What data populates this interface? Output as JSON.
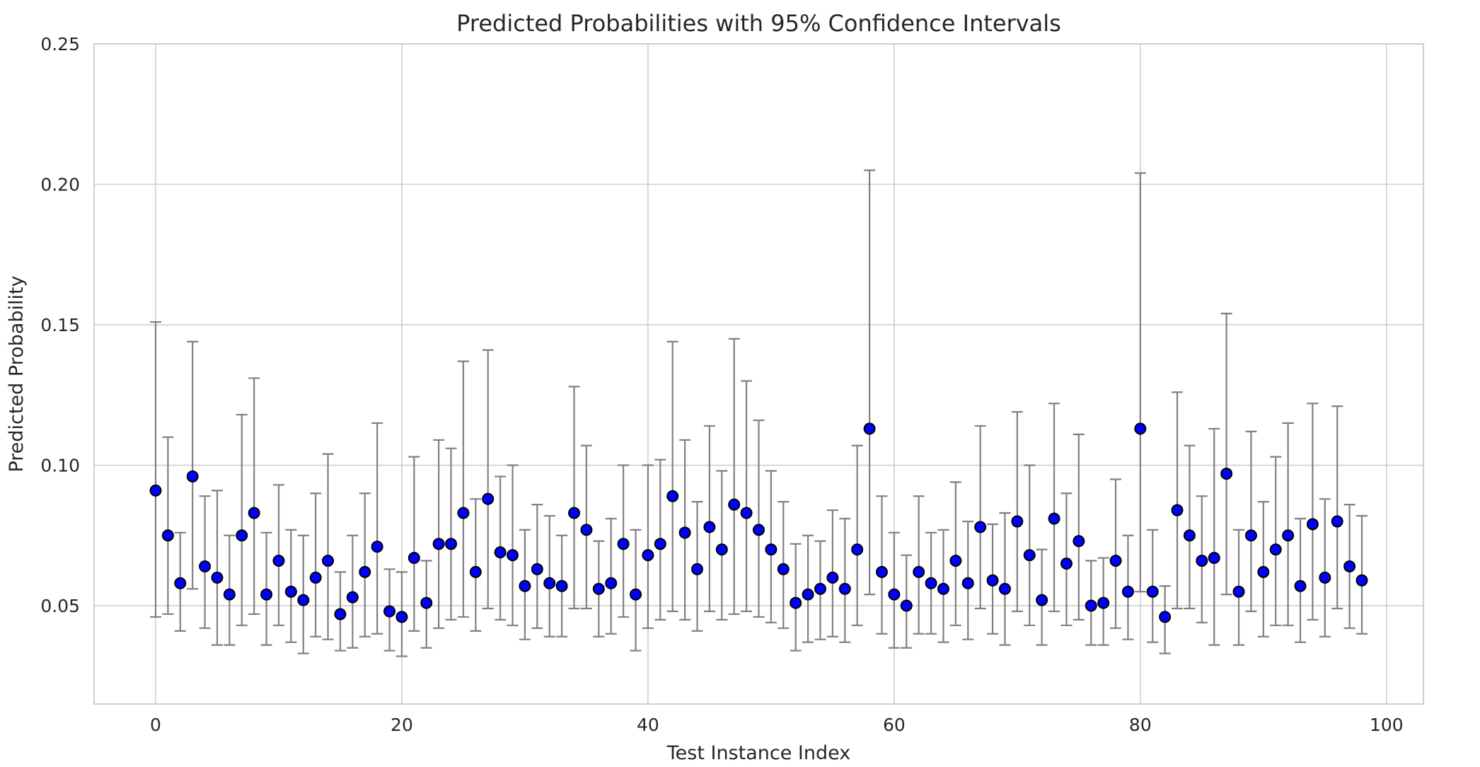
{
  "chart_data": {
    "type": "scatter",
    "title": "Predicted Probabilities with 95% Confidence Intervals",
    "xlabel": "Test Instance Index",
    "ylabel": "Predicted Probability",
    "xlim": [
      -5,
      103
    ],
    "ylim": [
      0.015,
      0.25
    ],
    "x_ticks": [
      0,
      20,
      40,
      60,
      80,
      100
    ],
    "x_tick_labels": [
      "0",
      "20",
      "40",
      "60",
      "80",
      "100"
    ],
    "y_ticks": [
      0.05,
      0.1,
      0.15,
      0.2,
      0.25
    ],
    "y_tick_labels": [
      "0.05",
      "0.10",
      "0.15",
      "0.20",
      "0.25"
    ],
    "grid": true,
    "marker_color": "#0000ff",
    "marker_edge_color": "#000000",
    "errorbar_color": "#808080",
    "x": [
      0,
      1,
      2,
      3,
      4,
      5,
      6,
      7,
      8,
      9,
      10,
      11,
      12,
      13,
      14,
      15,
      16,
      17,
      18,
      19,
      20,
      21,
      22,
      23,
      24,
      25,
      26,
      27,
      28,
      29,
      30,
      31,
      32,
      33,
      34,
      35,
      36,
      37,
      38,
      39,
      40,
      41,
      42,
      43,
      44,
      45,
      46,
      47,
      48,
      49,
      50,
      51,
      52,
      53,
      54,
      55,
      56,
      57,
      58,
      59,
      60,
      61,
      62,
      63,
      64,
      65,
      66,
      67,
      68,
      69,
      70,
      71,
      72,
      73,
      74,
      75,
      76,
      77,
      78,
      79,
      80,
      81,
      82,
      83,
      84,
      85,
      86,
      87,
      88,
      89,
      90,
      91,
      92,
      93,
      94,
      95,
      96,
      97,
      98
    ],
    "y": [
      0.091,
      0.075,
      0.058,
      0.096,
      0.064,
      0.06,
      0.054,
      0.075,
      0.083,
      0.054,
      0.066,
      0.055,
      0.052,
      0.06,
      0.066,
      0.047,
      0.053,
      0.062,
      0.071,
      0.048,
      0.046,
      0.067,
      0.051,
      0.072,
      0.072,
      0.083,
      0.062,
      0.088,
      0.069,
      0.068,
      0.057,
      0.063,
      0.058,
      0.057,
      0.083,
      0.077,
      0.056,
      0.058,
      0.072,
      0.054,
      0.068,
      0.072,
      0.089,
      0.076,
      0.063,
      0.078,
      0.07,
      0.086,
      0.083,
      0.077,
      0.07,
      0.063,
      0.051,
      0.054,
      0.056,
      0.06,
      0.056,
      0.07,
      0.113,
      0.062,
      0.054,
      0.05,
      0.062,
      0.058,
      0.056,
      0.066,
      0.058,
      0.078,
      0.059,
      0.056,
      0.08,
      0.068,
      0.052,
      0.081,
      0.065,
      0.073,
      0.05,
      0.051,
      0.066,
      0.055,
      0.113,
      0.055,
      0.046,
      0.084,
      0.075,
      0.066,
      0.067,
      0.097,
      0.055,
      0.075,
      0.062,
      0.07,
      0.075,
      0.057,
      0.079,
      0.06,
      0.08,
      0.064,
      0.059
    ],
    "ci_lower": [
      0.046,
      0.047,
      0.041,
      0.056,
      0.042,
      0.036,
      0.036,
      0.043,
      0.047,
      0.036,
      0.043,
      0.037,
      0.033,
      0.039,
      0.038,
      0.034,
      0.035,
      0.039,
      0.04,
      0.034,
      0.032,
      0.041,
      0.035,
      0.042,
      0.045,
      0.046,
      0.041,
      0.049,
      0.045,
      0.043,
      0.038,
      0.042,
      0.039,
      0.039,
      0.049,
      0.049,
      0.039,
      0.04,
      0.046,
      0.034,
      0.042,
      0.045,
      0.048,
      0.045,
      0.041,
      0.048,
      0.045,
      0.047,
      0.048,
      0.046,
      0.044,
      0.042,
      0.034,
      0.037,
      0.038,
      0.039,
      0.037,
      0.043,
      0.054,
      0.04,
      0.035,
      0.035,
      0.04,
      0.04,
      0.037,
      0.043,
      0.038,
      0.049,
      0.04,
      0.036,
      0.048,
      0.043,
      0.036,
      0.048,
      0.043,
      0.045,
      0.036,
      0.036,
      0.042,
      0.038,
      0.055,
      0.037,
      0.033,
      0.049,
      0.049,
      0.044,
      0.036,
      0.054,
      0.036,
      0.048,
      0.039,
      0.043,
      0.043,
      0.037,
      0.045,
      0.039,
      0.049,
      0.042,
      0.04
    ],
    "ci_upper": [
      0.151,
      0.11,
      0.076,
      0.144,
      0.089,
      0.091,
      0.075,
      0.118,
      0.131,
      0.076,
      0.093,
      0.077,
      0.075,
      0.09,
      0.104,
      0.062,
      0.075,
      0.09,
      0.115,
      0.063,
      0.062,
      0.103,
      0.066,
      0.109,
      0.106,
      0.137,
      0.088,
      0.141,
      0.096,
      0.1,
      0.077,
      0.086,
      0.082,
      0.075,
      0.128,
      0.107,
      0.073,
      0.081,
      0.1,
      0.077,
      0.1,
      0.102,
      0.144,
      0.109,
      0.087,
      0.114,
      0.098,
      0.145,
      0.13,
      0.116,
      0.098,
      0.087,
      0.072,
      0.075,
      0.073,
      0.084,
      0.081,
      0.107,
      0.205,
      0.089,
      0.076,
      0.068,
      0.089,
      0.076,
      0.077,
      0.094,
      0.08,
      0.114,
      0.079,
      0.083,
      0.119,
      0.1,
      0.07,
      0.122,
      0.09,
      0.111,
      0.066,
      0.067,
      0.095,
      0.075,
      0.204,
      0.077,
      0.057,
      0.126,
      0.107,
      0.089,
      0.113,
      0.154,
      0.077,
      0.112,
      0.087,
      0.103,
      0.115,
      0.081,
      0.122,
      0.088,
      0.121,
      0.086,
      0.082
    ]
  }
}
